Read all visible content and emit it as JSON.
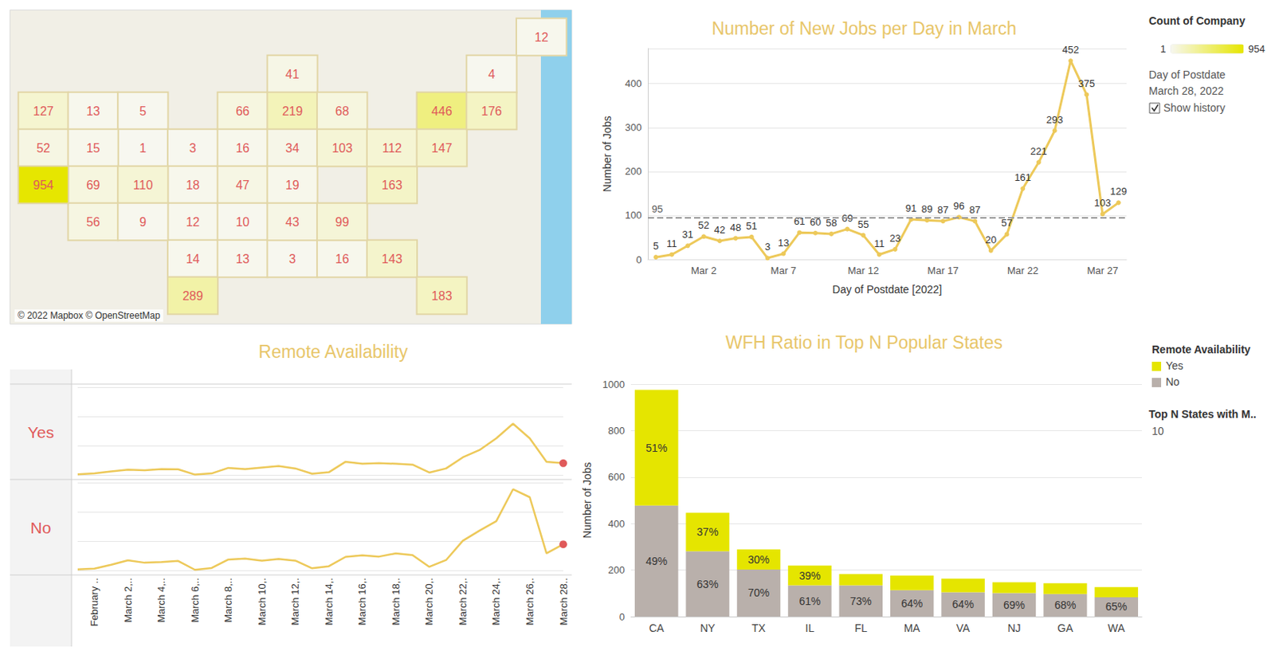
{
  "chart_data": [
    {
      "type": "map",
      "values": [
        127,
        52,
        13,
        5,
        1,
        3,
        18,
        12,
        14,
        289,
        66,
        16,
        47,
        10,
        13,
        3,
        41,
        219,
        34,
        19,
        43,
        16,
        68,
        103,
        143,
        183,
        99,
        163,
        112,
        446,
        147,
        4,
        176,
        12,
        15,
        69,
        110,
        56,
        9,
        954
      ],
      "colorbar": {
        "title": "Count of Company",
        "range": [
          1,
          954
        ]
      },
      "annotations": [
        "© 2022 Mapbox © OpenStreetMap"
      ],
      "data_labels": true,
      "tick_labels": false
    },
    {
      "type": "line",
      "title": "Number of New Jobs per Day in March",
      "x_label": "Day of Postdate [2022]",
      "y_label": "Number of Jobs",
      "categories": [
        null,
        null,
        null,
        "Mar 2",
        null,
        null,
        null,
        null,
        "Mar 7",
        null,
        null,
        null,
        null,
        "Mar 12",
        null,
        null,
        null,
        null,
        "Mar 17",
        null,
        null,
        null,
        null,
        "Mar 22",
        null,
        null,
        null,
        null,
        "Mar 27",
        null
      ],
      "values": [
        5,
        11,
        31,
        52,
        42,
        48,
        51,
        3,
        13,
        61,
        60,
        58,
        69,
        55,
        11,
        23,
        91,
        89,
        87,
        96,
        87,
        20,
        57,
        161,
        221,
        293,
        452,
        375,
        103,
        129
      ],
      "color": "#edc95a",
      "marker": "circle",
      "reference_line": 95,
      "ylim": [
        0,
        480
      ],
      "yticks": [
        0,
        100,
        200,
        300,
        400
      ],
      "grid": true,
      "data_labels": true,
      "annotations": [
        "Day of Postdate",
        "March 28, 2022",
        "Show history"
      ]
    },
    {
      "type": "line",
      "title": "Remote Availability",
      "categories": [
        null,
        "February ..",
        null,
        "March 2,..",
        null,
        "March 4,..",
        null,
        "March 6,..",
        null,
        "March 8,..",
        null,
        "March 10,.",
        null,
        "March 12,.",
        null,
        "March 14,.",
        null,
        "March 16,.",
        null,
        "March 18,.",
        null,
        "March 20,.",
        null,
        "March 22,.",
        null,
        "March 24,.",
        null,
        "March 26,.",
        null,
        "March 28.."
      ],
      "series": [
        {
          "name": "Yes",
          "color": "#edc95a",
          "values": [
            2,
            5,
            12,
            18,
            16,
            20,
            19,
            1,
            5,
            24,
            20,
            25,
            30,
            22,
            4,
            9,
            45,
            38,
            40,
            38,
            35,
            8,
            22,
            60,
            85,
            125,
            175,
            125,
            45,
            40
          ]
        },
        {
          "name": "No",
          "color": "#edc95a",
          "values": [
            3,
            6,
            19,
            34,
            26,
            28,
            32,
            2,
            8,
            37,
            40,
            33,
            39,
            33,
            7,
            14,
            46,
            51,
            47,
            58,
            52,
            12,
            35,
            101,
            136,
            168,
            277,
            250,
            58,
            89
          ]
        }
      ],
      "ylim": [
        0,
        300
      ],
      "yticks": [
        0,
        100,
        200,
        300
      ],
      "grid": true,
      "tick_labels": "x"
    },
    {
      "type": "bar",
      "title": "WFH Ratio in Top N Popular States",
      "y_label": "Number of Jobs",
      "categories": [
        "CA",
        "NY",
        "TX",
        "IL",
        "FL",
        "MA",
        "VA",
        "NJ",
        "GA",
        "WA"
      ],
      "series": [
        {
          "name": "Yes",
          "color": "#e5e500",
          "values": [
            497,
            165,
            87,
            85,
            49,
            63,
            59,
            46,
            46,
            44
          ],
          "share_labels": [
            "51%",
            "37%",
            "30%",
            "39%",
            null,
            null,
            null,
            null,
            null,
            null
          ]
        },
        {
          "name": "No",
          "color": "#b9b0ab",
          "values": [
            478,
            281,
            202,
            134,
            134,
            113,
            104,
            101,
            97,
            83
          ],
          "share_labels": [
            "49%",
            "63%",
            "70%",
            "61%",
            "73%",
            "64%",
            "64%",
            "69%",
            "68%",
            "65%"
          ]
        }
      ],
      "stacked": true,
      "ylim": [
        0,
        1000
      ],
      "yticks": [
        0,
        200,
        400,
        600,
        800,
        1000
      ],
      "grid": true,
      "legend": "right",
      "legend_title": "Remote Availability",
      "annotations": [
        "Top N States with M.."
      ],
      "top_n": 10
    }
  ]
}
